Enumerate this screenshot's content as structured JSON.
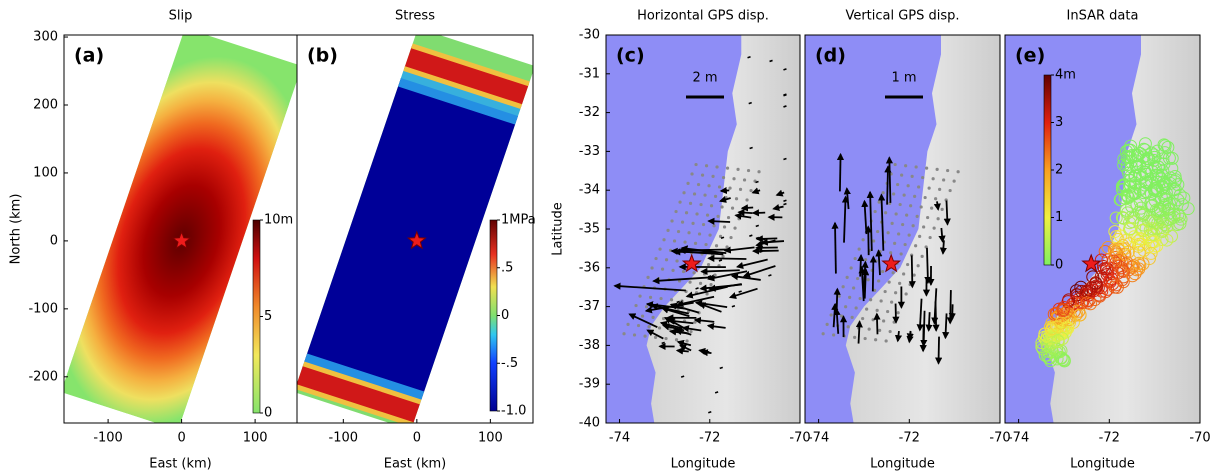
{
  "chart_data": [
    {
      "type": "heatmap",
      "title": "Slip",
      "panel_label": "(a)",
      "xlabel": "East (km)",
      "ylabel": "North (km)",
      "xlim": [
        -160,
        157
      ],
      "ylim": [
        -268,
        303
      ],
      "xticks": [
        -100,
        0,
        100
      ],
      "yticks": [
        -200,
        -100,
        0,
        100,
        200,
        300
      ],
      "colorbar": {
        "lim": [
          0,
          10
        ],
        "ticks": [
          0,
          5,
          {
            "value": 10,
            "label": "10m"
          }
        ]
      },
      "epicenter": {
        "x": 0,
        "y": 0
      }
    },
    {
      "type": "heatmap",
      "title": "Stress",
      "panel_label": "(b)",
      "xlabel": "East (km)",
      "xlim": [
        -163,
        158
      ],
      "ylim": [
        -268,
        303
      ],
      "xticks": [
        -100,
        0,
        100
      ],
      "colorbar": {
        "lim": [
          -1,
          1
        ],
        "ticks": [
          {
            "value": -1,
            "label": "-1.0"
          },
          {
            "value": -0.5,
            "label": "-.5"
          },
          0,
          {
            "value": 0.5,
            "label": ".5"
          },
          {
            "value": 1,
            "label": "1MPa"
          }
        ]
      },
      "epicenter": {
        "x": 0,
        "y": 0
      }
    },
    {
      "type": "map",
      "title": "Horizontal GPS disp.",
      "panel_label": "(c)",
      "xlabel": "Longitude",
      "ylabel": "Latitude",
      "xlim": [
        -74.3,
        -70
      ],
      "ylim": [
        -40,
        -30
      ],
      "xticks": [
        -74,
        -72,
        -70
      ],
      "yticks": [
        -40,
        -39,
        -38,
        -37,
        -36,
        -35,
        -34,
        -33,
        -32,
        -31,
        -30
      ],
      "scale_bar": {
        "label": "2 m"
      },
      "epicenter": {
        "x": -72.4,
        "y": -35.9
      }
    },
    {
      "type": "map",
      "title": "Vertical GPS disp.",
      "panel_label": "(d)",
      "xlabel": "Longitude",
      "xlim": [
        -74.3,
        -70
      ],
      "ylim": [
        -40,
        -30
      ],
      "xticks": [
        -74,
        -72,
        -70
      ],
      "scale_bar": {
        "label": "1 m"
      },
      "epicenter": {
        "x": -72.4,
        "y": -35.9
      }
    },
    {
      "type": "map",
      "title": "InSAR data",
      "panel_label": "(e)",
      "xlabel": "Longitude",
      "xlim": [
        -74.3,
        -70
      ],
      "ylim": [
        -40,
        -30
      ],
      "xticks": [
        -74,
        -72,
        -70
      ],
      "colorbar": {
        "lim": [
          0,
          4
        ],
        "ticks": [
          0,
          1,
          2,
          3,
          {
            "value": 4,
            "label": "4m"
          }
        ]
      },
      "epicenter": {
        "x": -72.4,
        "y": -35.9
      }
    }
  ]
}
